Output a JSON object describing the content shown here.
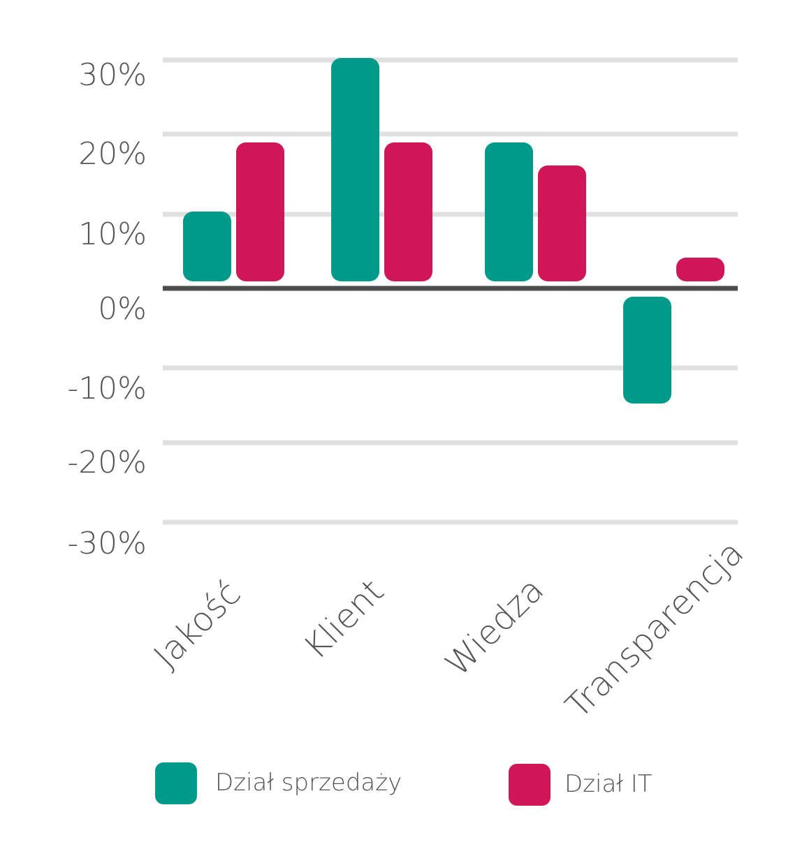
{
  "chart_data": {
    "type": "bar",
    "title": "",
    "xlabel": "",
    "ylabel": "",
    "categories": [
      "Jakość",
      "Klient",
      "Wiedza",
      "Transparencja"
    ],
    "series": [
      {
        "name": "Dział sprzedaży",
        "color": "#009a8a",
        "values": [
          10,
          30,
          19,
          -15
        ]
      },
      {
        "name": "Dział IT",
        "color": "#d01657",
        "values": [
          19,
          19,
          16,
          4
        ]
      }
    ],
    "yticks": [
      30,
      20,
      10,
      0,
      -10,
      -20,
      -30
    ],
    "ytick_labels": [
      "30%",
      "20%",
      "10%",
      "0%",
      "-10%",
      "-20%",
      "-30%"
    ],
    "ylim": [
      -30,
      30
    ],
    "grid": true,
    "legend_position": "bottom",
    "colors": {
      "grid": "#e0e0e0",
      "zero_line": "#4d4d4d",
      "text": "#555555"
    }
  }
}
